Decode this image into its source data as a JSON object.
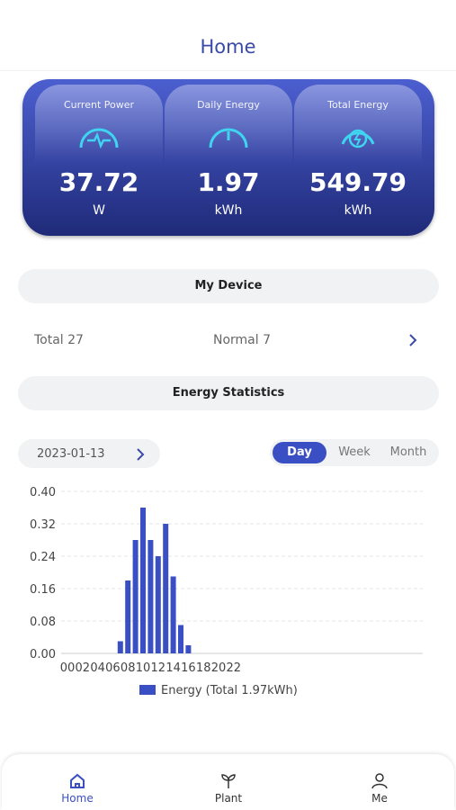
{
  "header": {
    "title": "Home"
  },
  "stats": [
    {
      "label": "Current Power",
      "value": 37.72,
      "unit": "W"
    },
    {
      "label": "Daily Energy",
      "value": 1.97,
      "unit": "kWh"
    },
    {
      "label": "Total Energy",
      "value": 549.79,
      "unit": "kWh"
    }
  ],
  "device": {
    "title": "My Device",
    "total": "Total 27",
    "normal": "Normal 7"
  },
  "energy": {
    "title": "Energy Statistics",
    "date": "2023-01-13",
    "tabs": [
      {
        "label": "Day",
        "selected": true
      },
      {
        "label": "Week",
        "selected": false
      },
      {
        "label": "Month",
        "selected": false
      }
    ],
    "chart": {
      "type": "bar",
      "categories": [
        "00",
        null,
        "02",
        null,
        "04",
        null,
        "06",
        null,
        "08",
        null,
        "10",
        null,
        "12",
        null,
        "14",
        null,
        "16",
        null,
        "18",
        null,
        "20",
        null,
        "22",
        null
      ],
      "series": [
        {
          "name": "Energy (Total 1.97kWh)",
          "color": "#3a4fc4",
          "values": [
            0,
            0,
            0,
            0,
            0,
            0,
            0,
            0.03,
            0.18,
            0.28,
            0.36,
            0.28,
            0.24,
            0.32,
            0.19,
            0.07,
            0.02,
            0,
            0,
            0,
            0,
            0,
            0,
            0
          ]
        }
      ],
      "ylim": [
        0,
        0.4
      ],
      "yticks": [
        {
          "value": 0,
          "label": "0.00"
        },
        {
          "value": 0.08,
          "label": "0.08"
        },
        {
          "value": 0.16,
          "label": "0.16"
        },
        {
          "value": 0.24,
          "label": "0.24"
        },
        {
          "value": 0.32,
          "label": "0.32"
        },
        {
          "value": 0.4,
          "label": "0.40"
        }
      ],
      "grid": true
    }
  },
  "nav": [
    {
      "label": "Home",
      "selected": true
    },
    {
      "label": "Plant",
      "selected": false
    },
    {
      "label": "Me",
      "selected": false
    }
  ]
}
